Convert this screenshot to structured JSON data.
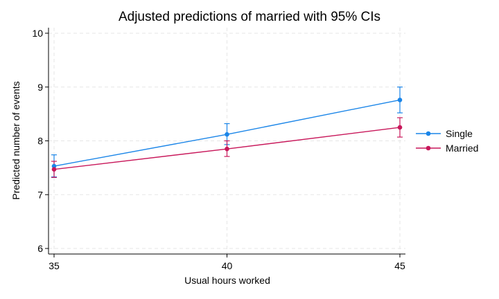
{
  "chart_data": {
    "type": "line",
    "title": "Adjusted predictions of married with 95% CIs",
    "xlabel": "Usual hours worked",
    "ylabel": "Predicted number of events",
    "x": [
      35,
      40,
      45
    ],
    "xlim": [
      35,
      45
    ],
    "ylim": [
      6,
      10
    ],
    "xticks": [
      35,
      40,
      45
    ],
    "yticks": [
      6,
      7,
      8,
      9,
      10
    ],
    "grid": true,
    "legend_position": "right",
    "series": [
      {
        "name": "Single",
        "color": "#1a85e8",
        "values": [
          7.53,
          8.12,
          8.76
        ],
        "ci_lower": [
          7.33,
          7.93,
          8.52
        ],
        "ci_upper": [
          7.74,
          8.32,
          9.0
        ]
      },
      {
        "name": "Married",
        "color": "#c8175a",
        "values": [
          7.47,
          7.85,
          8.25
        ],
        "ci_lower": [
          7.32,
          7.71,
          8.07
        ],
        "ci_upper": [
          7.62,
          8.0,
          8.43
        ]
      }
    ]
  }
}
